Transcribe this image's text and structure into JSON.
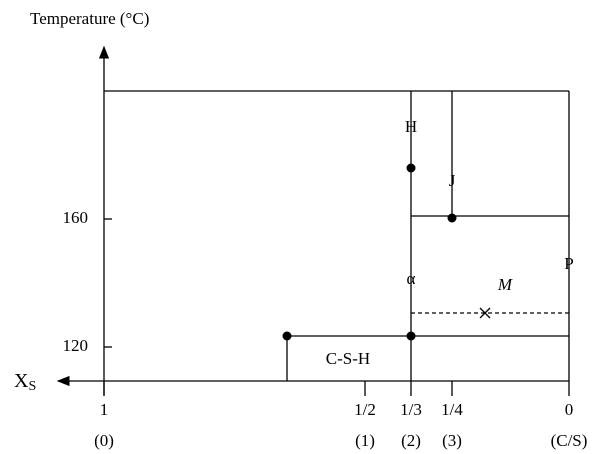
{
  "axes": {
    "y_title": "Temperature (°C)",
    "x_label": "X",
    "x_label_sub": "S",
    "y_ticks": [
      "160",
      "120"
    ],
    "x_ticks": [
      {
        "label": "1",
        "sub": "(0)"
      },
      {
        "label": "1/2",
        "sub": "(1)"
      },
      {
        "label": "1/3",
        "sub": "(2)"
      },
      {
        "label": "1/4",
        "sub": "(3)"
      },
      {
        "label": "0",
        "sub": "(C/S)"
      }
    ]
  },
  "labels": {
    "H": "H",
    "J": "J",
    "alpha": "α",
    "P": "P",
    "M": "M",
    "CSH": "C-S-H"
  }
}
